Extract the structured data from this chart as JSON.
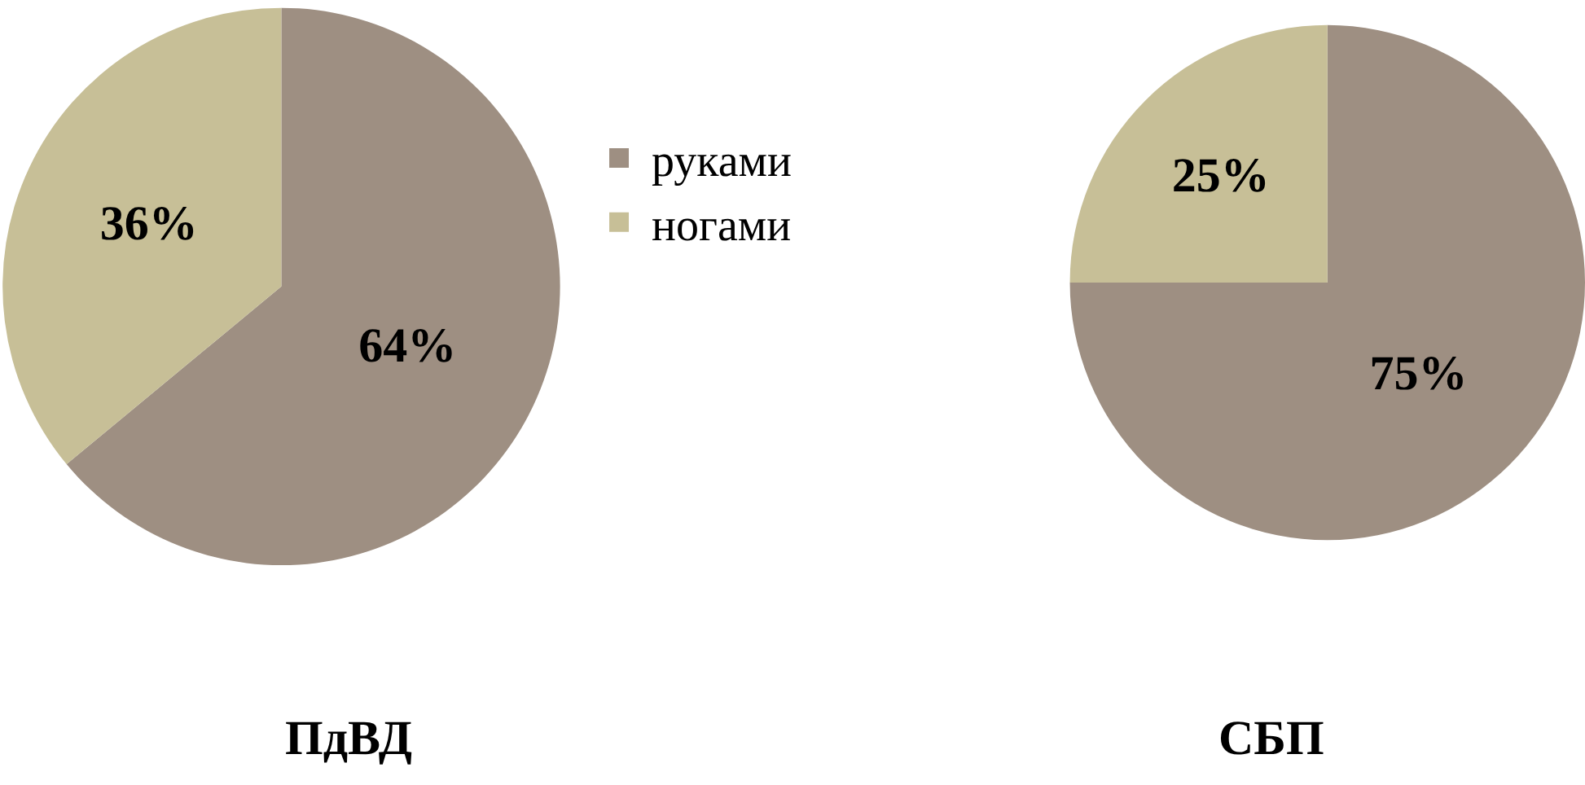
{
  "chart_data": [
    {
      "type": "pie",
      "title": "ПдВД",
      "categories": [
        "руками",
        "ногами"
      ],
      "values": [
        64,
        36
      ],
      "colors": [
        "#9e8f82",
        "#c7bf97"
      ],
      "value_labels": [
        "64%",
        "36%"
      ],
      "legend": "right"
    },
    {
      "type": "pie",
      "title": "СБП",
      "categories": [
        null,
        null
      ],
      "values": [
        75,
        25
      ],
      "colors": [
        "#9e8f82",
        "#c7bf97"
      ],
      "value_labels": [
        "75%",
        "25%"
      ],
      "legend": false
    }
  ]
}
